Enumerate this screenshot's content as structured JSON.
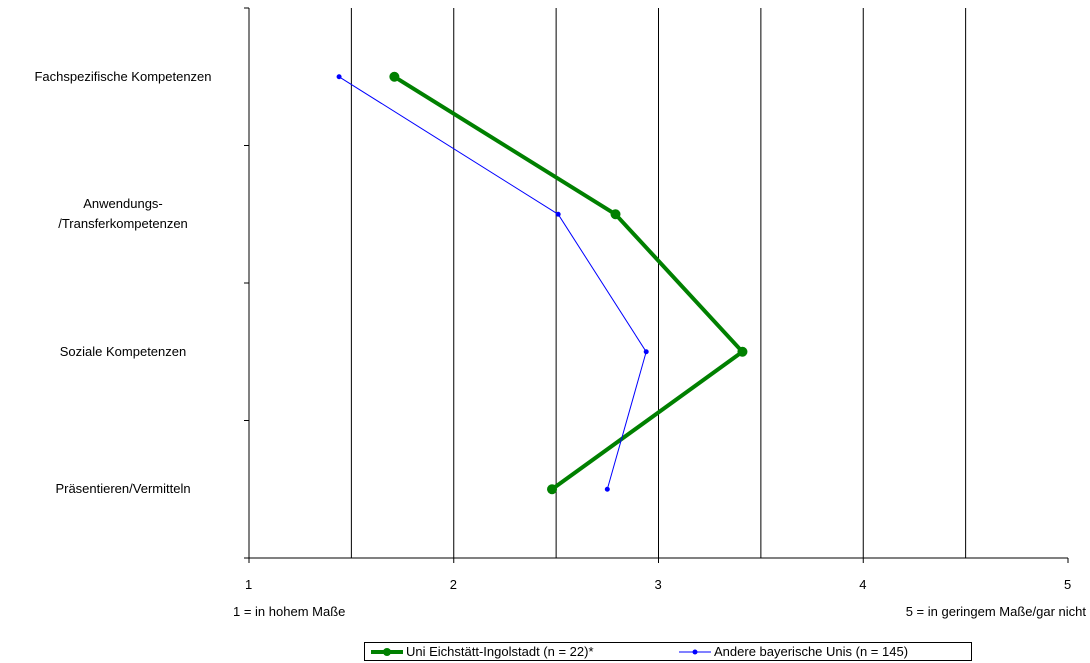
{
  "chart_data": {
    "type": "line",
    "orientation": "horizontal",
    "categories": [
      "Fachspezifische Kompetenzen",
      "Anwendungs-\n/Transferkompetenzen",
      "Soziale Kompetenzen",
      "Präsentieren/Vermitteln"
    ],
    "series": [
      {
        "name": "Uni Eichstätt-Ingolstadt (n = 22)*",
        "color": "#008000",
        "values": [
          1.71,
          2.79,
          3.41,
          2.48
        ]
      },
      {
        "name": "Andere bayerische Unis (n = 145)",
        "color": "#0000ff",
        "values": [
          1.44,
          2.51,
          2.94,
          2.75
        ]
      }
    ],
    "xlim": [
      1,
      5
    ],
    "xticks": [
      "1",
      "2",
      "3",
      "4",
      "5"
    ],
    "xgrid": [
      1.5,
      2,
      2.5,
      3,
      3.5,
      4,
      4.5
    ],
    "annotations": {
      "left": "1 = in hohem Maße",
      "right": "5 = in geringem Maße/gar nicht"
    },
    "title": "",
    "xlabel": "",
    "ylabel": "",
    "legend_position": "bottom"
  }
}
